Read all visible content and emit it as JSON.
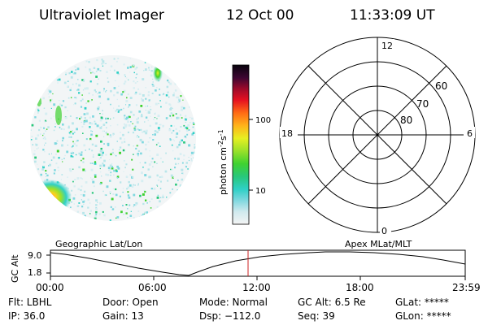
{
  "header": {
    "instrument": "Ultraviolet Imager",
    "date": "12 Oct 00",
    "time": "11:33:09 UT"
  },
  "colorbar": {
    "unit_label": "photon cm",
    "unit_exp1": "-2",
    "unit_mid": "s",
    "unit_exp2": "-1",
    "tick_100": "100",
    "tick_10": "10"
  },
  "polar_plot": {
    "label_top": "12",
    "label_bottom": "0",
    "label_left": "18",
    "label_right": "6",
    "lat_60": "60",
    "lat_70": "70",
    "lat_80": "80"
  },
  "track": {
    "left_title": "Geographic Lat/Lon",
    "right_title": "Apex MLat/MLT",
    "ylabel": "GC Alt",
    "ytick_top": "9.0",
    "ytick_bottom": "1.8",
    "xticks": [
      "00:00",
      "06:00",
      "12:00",
      "18:00",
      "23:59"
    ],
    "marker_color": "#cc2222"
  },
  "info": {
    "flt": "Flt: LBHL",
    "ip": "IP: 36.0",
    "door": "Door: Open",
    "gain": "Gain: 13",
    "mode": "Mode: Normal",
    "dsp": "Dsp: −112.0",
    "gcalt": "GC Alt: 6.5 Re",
    "seq": "Seq: 39",
    "glat": "GLat: *****",
    "glon": "GLon: *****"
  }
}
